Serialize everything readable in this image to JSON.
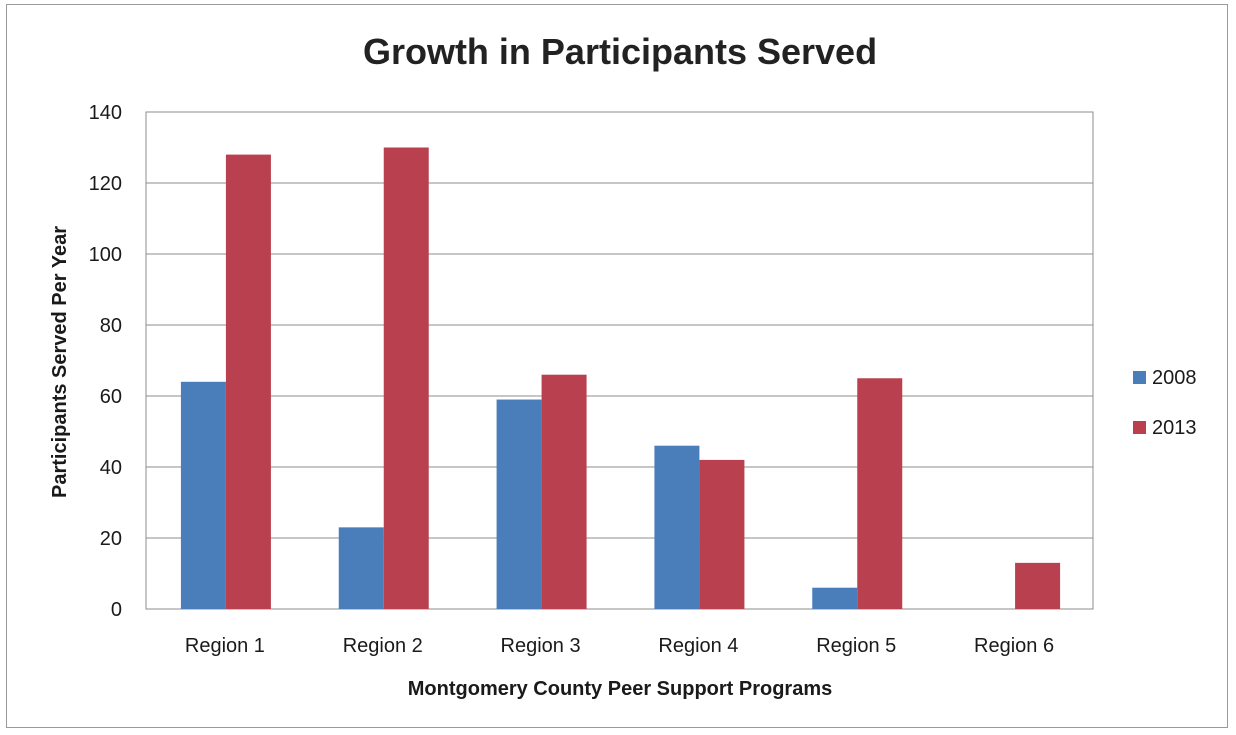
{
  "chart_data": {
    "type": "bar",
    "title": "Growth in Participants Served",
    "xlabel": "Montgomery County Peer Support Programs",
    "ylabel": "Participants Served Per Year",
    "categories": [
      "Region 1",
      "Region 2",
      "Region 3",
      "Region 4",
      "Region 5",
      "Region 6"
    ],
    "series": [
      {
        "name": "2008",
        "color": "#4a7ebb",
        "values": [
          64,
          23,
          59,
          46,
          6,
          0
        ]
      },
      {
        "name": "2013",
        "color": "#b8404f",
        "values": [
          128,
          130,
          66,
          42,
          65,
          13
        ]
      }
    ],
    "ylim": [
      0,
      140
    ],
    "yticks": [
      "0",
      "20",
      "40",
      "60",
      "80",
      "100",
      "120",
      "140"
    ],
    "grid": true,
    "legend_position": "right"
  }
}
